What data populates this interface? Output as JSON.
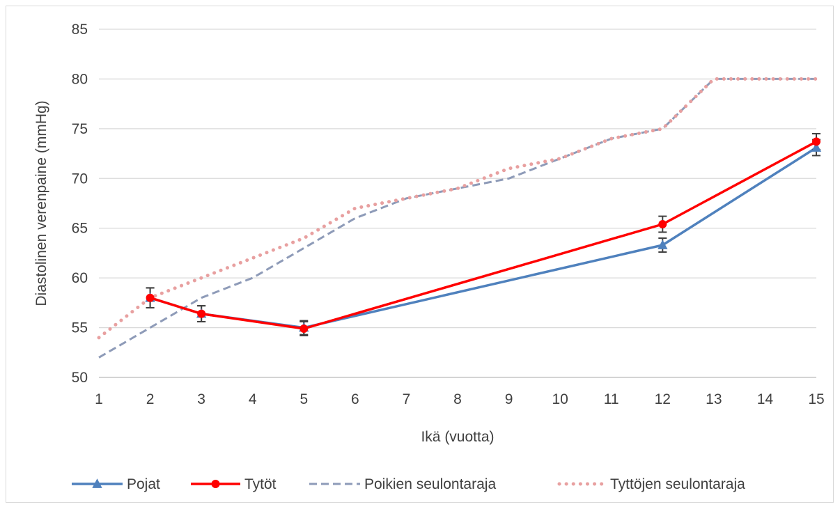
{
  "chart_data": {
    "type": "line",
    "title": "",
    "xlabel": "Ikä (vuotta)",
    "ylabel": "Diastolinen verenpaine (mmHg)",
    "x_ticks": [
      "1",
      "2",
      "3",
      "4",
      "5",
      "6",
      "7",
      "8",
      "9",
      "10",
      "11",
      "12",
      "13",
      "14",
      "15"
    ],
    "y_ticks": [
      "50",
      "55",
      "60",
      "65",
      "70",
      "75",
      "80",
      "85"
    ],
    "ylim": [
      50,
      85
    ],
    "xlim": [
      1,
      15
    ],
    "grid": "horizontal",
    "legend_position": "bottom",
    "series": [
      {
        "name": "Pojat",
        "color": "#4f81bd",
        "style": "solid",
        "marker": "triangle",
        "x": [
          2,
          3,
          5,
          12,
          15
        ],
        "y": [
          58.0,
          56.4,
          55.0,
          63.3,
          73.1
        ],
        "error": [
          1.0,
          0.8,
          0.7,
          0.7,
          0.8
        ]
      },
      {
        "name": "Tytöt",
        "color": "#ff0000",
        "style": "solid",
        "marker": "circle",
        "x": [
          2,
          3,
          5,
          12,
          15
        ],
        "y": [
          58.0,
          56.4,
          54.9,
          65.4,
          73.7
        ],
        "error": [
          1.0,
          0.8,
          0.7,
          0.8,
          0.8
        ]
      },
      {
        "name": "Poikien seulontaraja",
        "color": "#8e9bb8",
        "style": "dashed",
        "marker": "none",
        "x": [
          1,
          2,
          3,
          4,
          5,
          6,
          7,
          8,
          9,
          10,
          11,
          12,
          13,
          14,
          15
        ],
        "y": [
          52,
          55,
          58,
          60,
          63,
          66,
          68,
          69,
          70,
          72,
          74,
          75,
          80,
          80,
          80
        ]
      },
      {
        "name": "Tyttöjen seulontaraja",
        "color": "#e8a0a0",
        "style": "dotted",
        "marker": "none",
        "x": [
          1,
          2,
          3,
          4,
          5,
          6,
          7,
          8,
          9,
          10,
          11,
          12,
          13,
          14,
          15
        ],
        "y": [
          54,
          58,
          60,
          62,
          64,
          67,
          68,
          69,
          71,
          72,
          74,
          75,
          80,
          80,
          80
        ]
      }
    ]
  }
}
